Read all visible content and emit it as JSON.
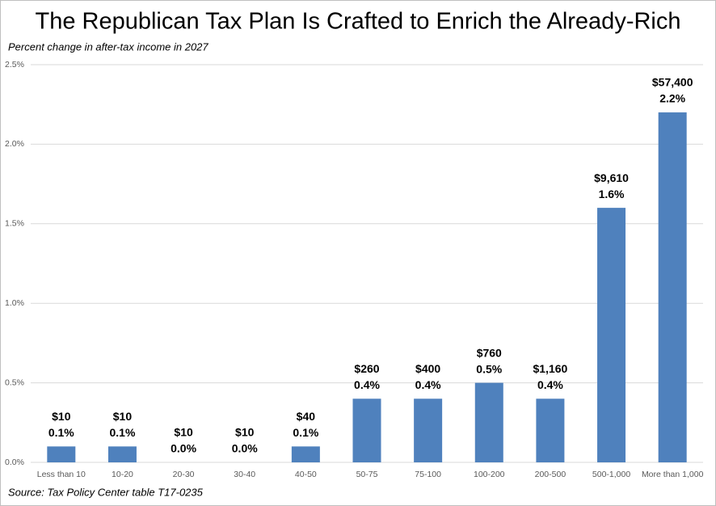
{
  "chart_data": {
    "type": "bar",
    "title": "The Republican Tax Plan Is Crafted to Enrich the Already-Rich",
    "subtitle": "Percent change in after-tax income in 2027",
    "source": "Source: Tax Policy Center table T17-0235",
    "categories": [
      "Less than 10",
      "10-20",
      "20-30",
      "30-40",
      "40-50",
      "50-75",
      "75-100",
      "100-200",
      "200-500",
      "500-1,000",
      "More than 1,000"
    ],
    "values": [
      0.1,
      0.1,
      0.0,
      0.0,
      0.1,
      0.4,
      0.4,
      0.5,
      0.4,
      1.6,
      2.2
    ],
    "value_labels": [
      "0.1%",
      "0.1%",
      "0.0%",
      "0.0%",
      "0.1%",
      "0.4%",
      "0.4%",
      "0.5%",
      "0.4%",
      "1.6%",
      "2.2%"
    ],
    "annotations": [
      "$10",
      "$10",
      "$10",
      "$10",
      "$40",
      "$260",
      "$400",
      "$760",
      "$1,160",
      "$9,610",
      "$57,400"
    ],
    "color": "#4f81bd",
    "ylim": [
      0,
      2.5
    ],
    "yticks": [
      {
        "value": 0,
        "label": "0.0%"
      },
      {
        "value": 0.5,
        "label": "0.5%"
      },
      {
        "value": 1,
        "label": "1.0%"
      },
      {
        "value": 1.5,
        "label": "1.5%"
      },
      {
        "value": 2,
        "label": "2.0%"
      },
      {
        "value": 2.5,
        "label": "2.5%"
      }
    ],
    "grid": true
  }
}
